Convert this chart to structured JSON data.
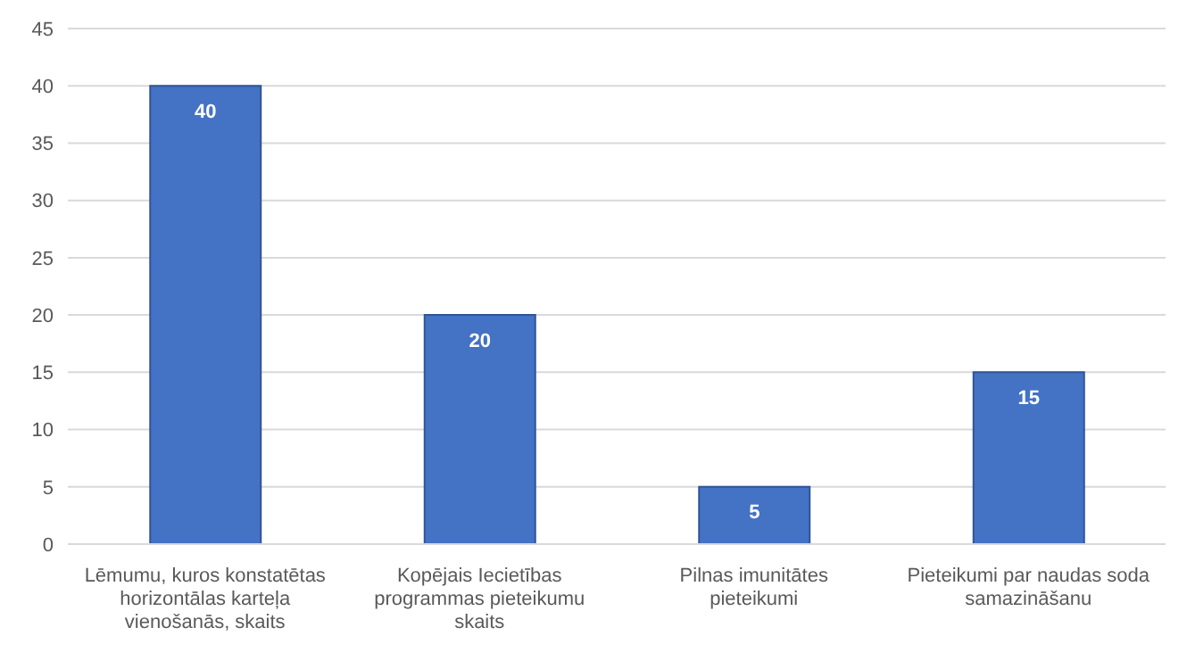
{
  "chart_data": {
    "type": "bar",
    "categories": [
      "Lēmumu, kuros konstatētas horizontālas karteļa vienošanās, skaits",
      "Kopējais Iecietības programmas pieteikumu skaits",
      "Pilnas imunitātes pieteikumi",
      "Pieteikumi par naudas soda samazināšanu"
    ],
    "values": [
      40,
      20,
      5,
      15
    ],
    "color": "#4472c4",
    "ylim": [
      0,
      45
    ],
    "yticks": [
      0,
      5,
      10,
      15,
      20,
      25,
      30,
      35,
      40,
      45
    ],
    "grid": "y",
    "data_labels": true
  }
}
